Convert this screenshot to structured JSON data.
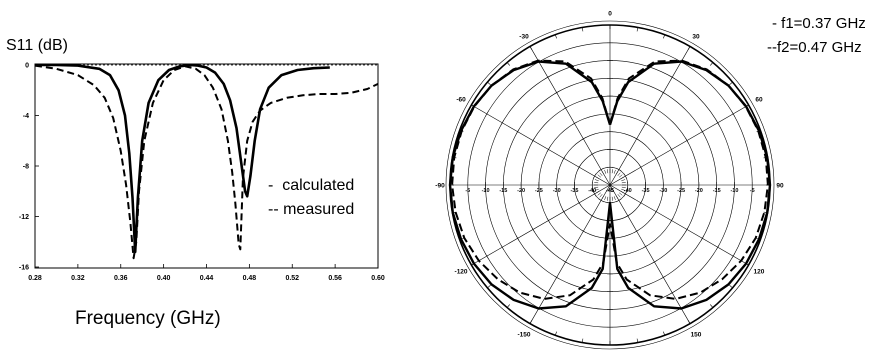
{
  "chart_data": [
    {
      "type": "line",
      "ylabel": "S11 (dB)",
      "xlabel": "Frequency (GHz)",
      "xlim": [
        0.28,
        0.6
      ],
      "ylim": [
        -16,
        0
      ],
      "xticks": [
        "0.28",
        "0.32",
        "0.36",
        "0.40",
        "0.44",
        "0.48",
        "0.52",
        "0.56",
        "0.60"
      ],
      "yticks": [
        "0",
        "-4",
        "-8",
        "-12",
        "-16"
      ],
      "legend": [
        "-  calculated",
        "-- measured"
      ],
      "legend_position": "right-center",
      "series": [
        {
          "name": "calculated",
          "dash": "solid",
          "x": [
            0.28,
            0.3,
            0.32,
            0.34,
            0.35,
            0.358,
            0.364,
            0.368,
            0.371,
            0.3735,
            0.376,
            0.38,
            0.386,
            0.395,
            0.405,
            0.415,
            0.425,
            0.432,
            0.44,
            0.448,
            0.456,
            0.462,
            0.468,
            0.472,
            0.476,
            0.478,
            0.481,
            0.485,
            0.49,
            0.498,
            0.51,
            0.525,
            0.54,
            0.555
          ],
          "y": [
            0,
            0,
            -0.05,
            -0.3,
            -0.8,
            -2.0,
            -4.0,
            -7.0,
            -10.5,
            -14.8,
            -10.5,
            -6.0,
            -3.0,
            -1.2,
            -0.4,
            -0.1,
            0,
            -0.05,
            -0.2,
            -0.6,
            -1.5,
            -2.8,
            -5.0,
            -7.5,
            -10.0,
            -10.4,
            -8.8,
            -6.0,
            -3.5,
            -1.8,
            -0.8,
            -0.4,
            -0.25,
            -0.2
          ]
        },
        {
          "name": "measured",
          "dash": "dashed",
          "x": [
            0.28,
            0.3,
            0.32,
            0.335,
            0.345,
            0.353,
            0.36,
            0.365,
            0.369,
            0.372,
            0.3745,
            0.377,
            0.382,
            0.39,
            0.4,
            0.41,
            0.42,
            0.43,
            0.438,
            0.446,
            0.454,
            0.46,
            0.464,
            0.467,
            0.47,
            0.4715,
            0.474,
            0.478,
            0.483,
            0.49,
            0.5,
            0.515,
            0.53,
            0.545,
            0.56,
            0.575,
            0.59,
            0.6
          ],
          "y": [
            -0.05,
            -0.3,
            -0.8,
            -1.6,
            -2.6,
            -4.2,
            -6.8,
            -9.5,
            -12.5,
            -15.3,
            -14.0,
            -10.0,
            -6.0,
            -3.0,
            -1.2,
            -0.4,
            -0.1,
            -0.3,
            -0.8,
            -1.8,
            -3.5,
            -6.0,
            -8.5,
            -11.0,
            -14.2,
            -14.6,
            -9.0,
            -6.0,
            -4.5,
            -3.6,
            -3.0,
            -2.6,
            -2.4,
            -2.3,
            -2.3,
            -2.2,
            -1.9,
            -1.5
          ]
        }
      ]
    },
    {
      "type": "polar",
      "angle_labels": [
        "0",
        "30",
        "60",
        "90",
        "120",
        "150",
        "180",
        "-150",
        "-120",
        "-90",
        "-60",
        "-30"
      ],
      "radial_labels": [
        "-5",
        "-10",
        "-15",
        "-20",
        "-25",
        "-30",
        "-35",
        "-40",
        "-45"
      ],
      "radial_range_db": [
        -45,
        0
      ],
      "legend": [
        "- f1=0.37 GHz",
        "--f2=0.47 GHz"
      ],
      "legend_position": "top-right",
      "series": [
        {
          "name": "f1=0.37 GHz",
          "dash": "solid",
          "angle_deg": [
            0,
            5,
            10,
            20,
            30,
            40,
            50,
            60,
            70,
            80,
            90,
            100,
            110,
            120,
            130,
            140,
            150,
            160,
            170,
            175,
            180,
            185,
            190,
            200,
            210,
            220,
            230,
            240,
            250,
            260,
            270,
            280,
            290,
            300,
            310,
            320,
            330,
            340,
            350,
            355,
            360
          ],
          "level_db": [
            -28.0,
            -21.3,
            -15.6,
            -8.7,
            -4.9,
            -2.8,
            -1.5,
            -0.8,
            -0.4,
            -0.1,
            0,
            -0.1,
            -0.4,
            -0.8,
            -1.5,
            -2.8,
            -4.9,
            -8.7,
            -15.6,
            -21.3,
            -40.0,
            -21.3,
            -15.6,
            -8.7,
            -4.9,
            -2.8,
            -1.5,
            -0.8,
            -0.4,
            -0.1,
            0,
            -0.1,
            -0.4,
            -0.8,
            -1.5,
            -2.8,
            -4.9,
            -8.7,
            -15.6,
            -21.3,
            -28.0
          ]
        },
        {
          "name": "f2=0.47 GHz",
          "dash": "dashed",
          "angle_deg": [
            0,
            5,
            10,
            20,
            30,
            40,
            50,
            60,
            70,
            80,
            90,
            100,
            110,
            120,
            130,
            140,
            150,
            160,
            170,
            175,
            180,
            185,
            190,
            200,
            210,
            220,
            230,
            240,
            250,
            260,
            270,
            280,
            290,
            300,
            310,
            320,
            330,
            340,
            350,
            355,
            360
          ],
          "level_db": [
            -28.0,
            -20.5,
            -14.6,
            -8.0,
            -4.6,
            -2.6,
            -1.5,
            -0.9,
            -0.6,
            -0.5,
            -0.6,
            -0.9,
            -1.4,
            -2.4,
            -3.8,
            -5.5,
            -8.0,
            -12.0,
            -18.0,
            -23.0,
            -34.0,
            -23.0,
            -18.0,
            -12.0,
            -8.0,
            -5.5,
            -3.8,
            -2.4,
            -1.4,
            -0.9,
            -0.6,
            -0.5,
            -0.6,
            -0.9,
            -1.5,
            -2.6,
            -4.6,
            -8.0,
            -14.6,
            -20.5,
            -28.0
          ]
        }
      ]
    }
  ]
}
